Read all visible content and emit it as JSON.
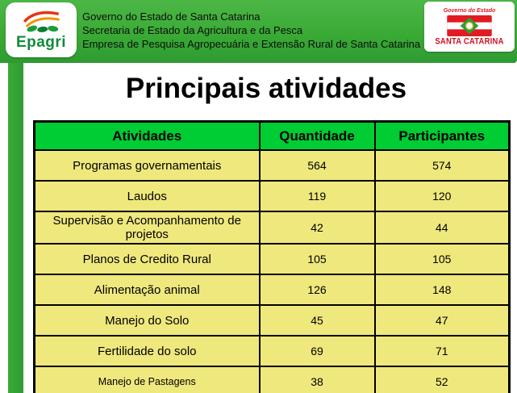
{
  "header": {
    "logo_text": "Epagri",
    "org_lines": [
      "Governo do Estado de Santa Catarina",
      "Secretaria de Estado da Agricultura e da Pesca",
      "Empresa de Pesquisa Agropecuária e Extensão Rural de Santa Catarina"
    ],
    "flag": {
      "ribbon": "Governo do Estado",
      "label": "SANTA CATARINA"
    }
  },
  "title": "Principais atividades",
  "table": {
    "headers": [
      "Atividades",
      "Quantidade",
      "Participantes"
    ],
    "rows": [
      [
        "Programas governamentais",
        "564",
        "574"
      ],
      [
        "Laudos",
        "119",
        "120"
      ],
      [
        "Supervisão e Acompanhamento de projetos",
        "42",
        "44"
      ],
      [
        "Planos de Credito Rural",
        "105",
        "105"
      ],
      [
        "Alimentação animal",
        "126",
        "148"
      ],
      [
        "Manejo do Solo",
        "45",
        "47"
      ],
      [
        "Fertilidade do solo",
        "69",
        "71"
      ],
      [
        "Manejo de Pastagens",
        "38",
        "52"
      ]
    ]
  },
  "colors": {
    "banner_green": "#3aaa35",
    "banner_green_dark": "#2e9b33",
    "table_header_green": "#00cc33",
    "row_yellow": "#efe87d",
    "flag_red": "#e11b22",
    "label_red": "#cc1122",
    "epagri_green": "#0e8c3a"
  }
}
